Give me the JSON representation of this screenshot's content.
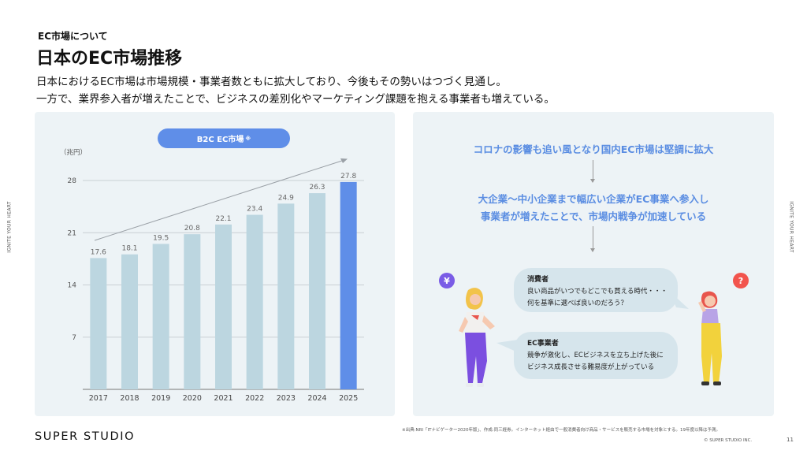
{
  "section_label": "EC市場について",
  "page_title": "日本のEC市場推移",
  "description": [
    "日本におけるEC市場は市場規模・事業者数ともに拡大しており、今後もその勢いはつづく見通し。",
    "一方で、業界参入者が増えたことで、ビジネスの差別化やマーケティング課題を抱える事業者も増えている。"
  ],
  "side_text": "IGNITE YOUR HEART",
  "pill": {
    "label": "B2C EC市場",
    "mark": "※"
  },
  "chart_data": {
    "type": "bar",
    "unit_label": "（兆円）",
    "categories": [
      "2017",
      "2018",
      "2019",
      "2020",
      "2021",
      "2022",
      "2023",
      "2024",
      "2025"
    ],
    "values": [
      17.6,
      18.1,
      19.5,
      20.8,
      22.1,
      23.4,
      24.9,
      26.3,
      27.8
    ],
    "value_labels": [
      "17.6",
      "18.1",
      "19.5",
      "20.8",
      "22.1",
      "23.4",
      "24.9",
      "26.3",
      "27.8"
    ],
    "y_ticks": [
      7,
      14,
      21,
      28
    ],
    "ylim": [
      0,
      30
    ],
    "grid": true,
    "highlight_category": "2025",
    "colors": {
      "bar": "#bcd6e0",
      "highlight": "#5f8ee8",
      "grid": "#c9d0d4",
      "trend_arrow": "#9aa0a6"
    }
  },
  "flow": {
    "step1": "コロナの影響も追い風となり国内EC市場は堅調に拡大",
    "step2_line1": "大企業〜中小企業まで幅広い企業がEC事業へ参入し",
    "step2_line2": "事業者が増えたことで、市場内戦争が加速している"
  },
  "bubbles": {
    "consumer": {
      "title": "消費者",
      "line1": "良い商品がいつでもどこでも買える時代・・・",
      "line2": "何を基準に選べば良いのだろう？"
    },
    "business": {
      "title": "EC事業者",
      "line1": "競争が激化し、ECビジネスを立ち上げた後に",
      "line2": "ビジネス成長させる難易度が上がっている"
    }
  },
  "icons": {
    "yen": "¥",
    "question": "?"
  },
  "brand": "SUPER STUDIO",
  "footnote": "※出典:NRI「ITナビゲーター2020年版」、作成:同三経券。インターネット経由で一般消費者向け商品・サービスを販売する市場を対象とする。19年度以降は予測。",
  "copyright": "© SUPER STUDIO INC.",
  "page_number": "11",
  "theme": {
    "accent": "#5f8ee8",
    "panel": "#edf3f6",
    "bubble": "#d6e5ec",
    "yen_icon": "#7a5ce6",
    "question_icon": "#f2544d"
  }
}
